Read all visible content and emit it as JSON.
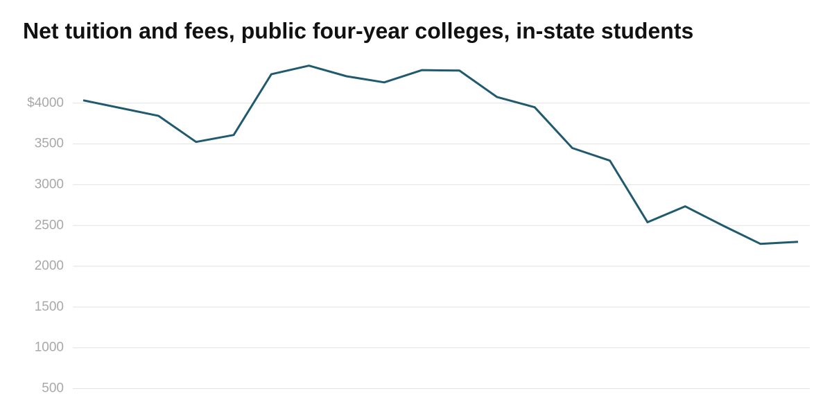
{
  "chart_data": {
    "type": "line",
    "title": "Net tuition and fees, public four-year colleges, in-state students",
    "categories": [
      null,
      null,
      null,
      null,
      null,
      null,
      null,
      null,
      null,
      null,
      null,
      null,
      null,
      null,
      null,
      null,
      null,
      null,
      null,
      null
    ],
    "series": [
      {
        "color": "#1f5a6e",
        "values": [
          4035,
          3940,
          3845,
          3525,
          3610,
          4355,
          4460,
          4330,
          4255,
          4405,
          4400,
          4075,
          3950,
          3450,
          3295,
          2540,
          2735,
          2500,
          2275,
          2300
        ]
      }
    ],
    "ylim": [
      300,
      4500
    ],
    "yticks": [
      500,
      1000,
      1500,
      2000,
      2500,
      3000,
      3500,
      {
        "value": 4000,
        "label": "$4000"
      }
    ],
    "grid": true
  }
}
